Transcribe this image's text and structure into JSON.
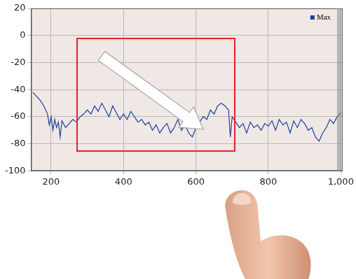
{
  "chart_data": {
    "type": "line",
    "series": [
      {
        "name": "Max",
        "color": "#1f3f9f",
        "x": [
          150,
          160,
          170,
          180,
          190,
          195,
          200,
          205,
          210,
          215,
          220,
          225,
          230,
          240,
          250,
          260,
          270,
          280,
          290,
          300,
          310,
          320,
          330,
          340,
          350,
          360,
          370,
          380,
          390,
          400,
          410,
          420,
          430,
          440,
          450,
          460,
          470,
          480,
          490,
          500,
          510,
          520,
          530,
          540,
          550,
          560,
          570,
          580,
          590,
          600,
          610,
          620,
          630,
          640,
          650,
          660,
          670,
          680,
          690,
          695,
          700,
          710,
          720,
          730,
          740,
          750,
          760,
          770,
          780,
          790,
          800,
          810,
          820,
          830,
          840,
          850,
          860,
          870,
          880,
          890,
          900,
          910,
          920,
          930,
          940,
          950,
          960,
          970,
          980,
          990,
          1000
        ],
        "values": [
          -42,
          -45,
          -48,
          -52,
          -58,
          -66,
          -60,
          -70,
          -62,
          -68,
          -64,
          -75,
          -63,
          -68,
          -65,
          -62,
          -64,
          -60,
          -58,
          -55,
          -58,
          -52,
          -56,
          -50,
          -55,
          -60,
          -52,
          -57,
          -62,
          -58,
          -62,
          -56,
          -60,
          -64,
          -62,
          -66,
          -64,
          -70,
          -66,
          -72,
          -68,
          -65,
          -72,
          -68,
          -62,
          -70,
          -66,
          -72,
          -75,
          -68,
          -64,
          -60,
          -62,
          -55,
          -58,
          -52,
          -50,
          -52,
          -55,
          -75,
          -60,
          -64,
          -68,
          -65,
          -72,
          -64,
          -68,
          -66,
          -70,
          -65,
          -67,
          -63,
          -70,
          -62,
          -66,
          -64,
          -72,
          -63,
          -68,
          -62,
          -65,
          -70,
          -68,
          -75,
          -78,
          -72,
          -68,
          -62,
          -65,
          -60,
          -57
        ]
      }
    ],
    "xlim": [
      145,
      1005
    ],
    "xticks": [
      200,
      400,
      600,
      800,
      {
        "value": 1000,
        "label": "1,000"
      }
    ],
    "ylim": [
      -100,
      20
    ],
    "yticks": [
      -100,
      -80,
      -60,
      -40,
      -20,
      0,
      20
    ],
    "grid": true,
    "legend": "upper right"
  }
}
